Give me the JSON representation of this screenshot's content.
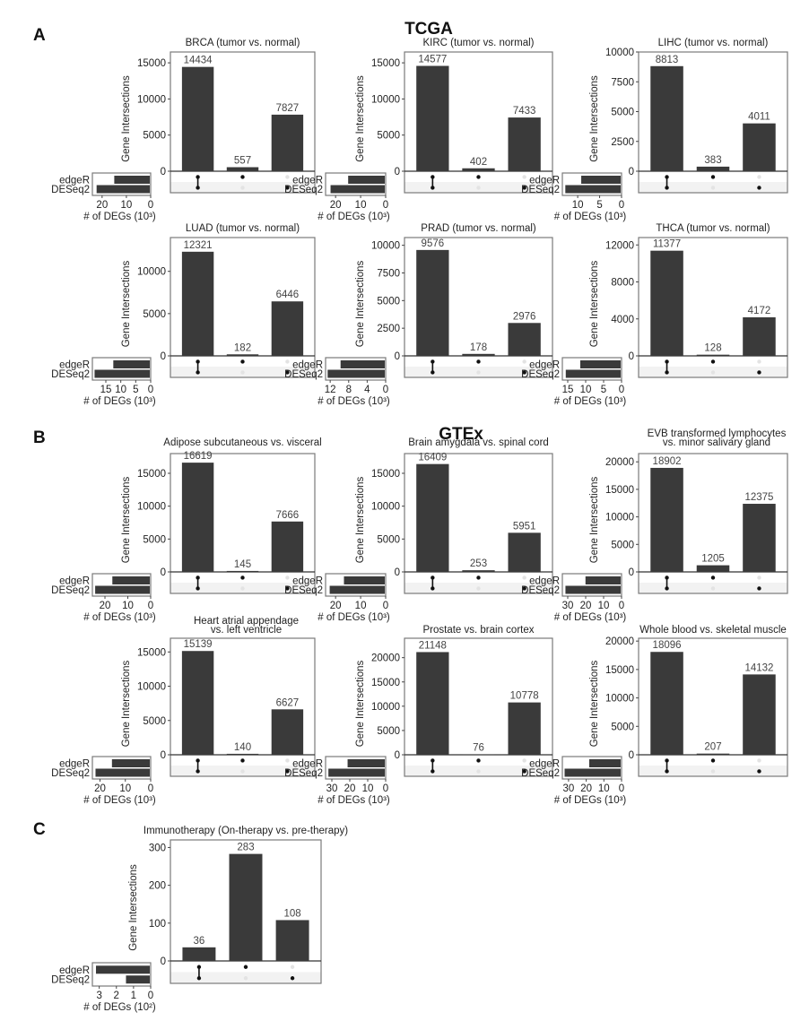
{
  "figure": {
    "sections": [
      {
        "letter": "A",
        "title": "TCGA"
      },
      {
        "letter": "B",
        "title": "GTEx"
      },
      {
        "letter": "C",
        "title": ""
      }
    ],
    "colors": {
      "bar": "#3a3a3a",
      "dot_active": "#111111",
      "dot_inactive": "#e3e3e3",
      "stripe": "#f2f2f2",
      "frame": "#7a7a7a"
    }
  },
  "chart_data": [
    {
      "type": "bar",
      "section": "A",
      "title": "BRCA (tumor vs. normal)",
      "ylabel": "Gene Intersections",
      "categories": [
        "edgeR & DESeq2",
        "edgeR only",
        "DESeq2 only"
      ],
      "values": [
        14434,
        557,
        7827
      ],
      "yticks": [
        0,
        5000,
        10000,
        15000
      ],
      "ylim": [
        0,
        16500
      ],
      "sets": [
        "edgeR",
        "DESeq2"
      ],
      "set_sizes": [
        14991,
        22261
      ],
      "set_xlabel": "# of DEGs (10³)",
      "set_ticks": [
        20,
        10,
        0
      ],
      "set_scale": 1000,
      "set_xlim": [
        24,
        0
      ]
    },
    {
      "type": "bar",
      "section": "A",
      "title": "KIRC (tumor vs. normal)",
      "ylabel": "Gene Intersections",
      "categories": [
        "edgeR & DESeq2",
        "edgeR only",
        "DESeq2 only"
      ],
      "values": [
        14577,
        402,
        7433
      ],
      "yticks": [
        0,
        5000,
        10000,
        15000
      ],
      "ylim": [
        0,
        16500
      ],
      "sets": [
        "edgeR",
        "DESeq2"
      ],
      "set_sizes": [
        14979,
        22010
      ],
      "set_xlabel": "# of DEGs (10³)",
      "set_ticks": [
        20,
        10,
        0
      ],
      "set_scale": 1000,
      "set_xlim": [
        24,
        0
      ]
    },
    {
      "type": "bar",
      "section": "A",
      "title": "LIHC (tumor vs. normal)",
      "ylabel": "Gene Intersections",
      "categories": [
        "edgeR & DESeq2",
        "edgeR only",
        "DESeq2 only"
      ],
      "values": [
        8813,
        383,
        4011
      ],
      "yticks": [
        0,
        2500,
        5000,
        7500,
        10000
      ],
      "ylim": [
        0,
        10000
      ],
      "sets": [
        "edgeR",
        "DESeq2"
      ],
      "set_sizes": [
        9196,
        12824
      ],
      "set_xlabel": "# of DEGs (10³)",
      "set_ticks": [
        10,
        5,
        0
      ],
      "set_scale": 1000,
      "set_xlim": [
        13.5,
        0
      ]
    },
    {
      "type": "bar",
      "section": "A",
      "title": "LUAD (tumor vs. normal)",
      "ylabel": "Gene Intersections",
      "categories": [
        "edgeR & DESeq2",
        "edgeR only",
        "DESeq2 only"
      ],
      "values": [
        12321,
        182,
        6446
      ],
      "yticks": [
        0,
        5000,
        10000
      ],
      "ylim": [
        0,
        14000
      ],
      "sets": [
        "edgeR",
        "DESeq2"
      ],
      "set_sizes": [
        12503,
        18767
      ],
      "set_xlabel": "# of DEGs (10³)",
      "set_ticks": [
        15,
        10,
        5,
        0
      ],
      "set_scale": 1000,
      "set_xlim": [
        19.5,
        0
      ]
    },
    {
      "type": "bar",
      "section": "A",
      "title": "PRAD (tumor vs. normal)",
      "ylabel": "Gene Intersections",
      "categories": [
        "edgeR & DESeq2",
        "edgeR only",
        "DESeq2 only"
      ],
      "values": [
        9576,
        178,
        2976
      ],
      "yticks": [
        0,
        2500,
        5000,
        7500,
        10000
      ],
      "ylim": [
        0,
        10700
      ],
      "sets": [
        "edgeR",
        "DESeq2"
      ],
      "set_sizes": [
        9754,
        12552
      ],
      "set_xlabel": "# of DEGs (10³)",
      "set_ticks": [
        12,
        8,
        4,
        0
      ],
      "set_scale": 1000,
      "set_xlim": [
        13,
        0
      ]
    },
    {
      "type": "bar",
      "section": "A",
      "title": "THCA (tumor vs. normal)",
      "ylabel": "Gene Intersections",
      "categories": [
        "edgeR & DESeq2",
        "edgeR only",
        "DESeq2 only"
      ],
      "values": [
        11377,
        128,
        4172
      ],
      "yticks": [
        0,
        4000,
        8000,
        12000
      ],
      "ylim": [
        0,
        12800
      ],
      "sets": [
        "edgeR",
        "DESeq2"
      ],
      "set_sizes": [
        11505,
        15549
      ],
      "set_xlabel": "# of DEGs (10³)",
      "set_ticks": [
        15,
        10,
        5,
        0
      ],
      "set_scale": 1000,
      "set_xlim": [
        16.5,
        0
      ]
    },
    {
      "type": "bar",
      "section": "B",
      "title": "Adipose subcutaneous vs. visceral",
      "ylabel": "Gene Intersections",
      "categories": [
        "edgeR & DESeq2",
        "edgeR only",
        "DESeq2 only"
      ],
      "values": [
        16619,
        145,
        7666
      ],
      "yticks": [
        0,
        5000,
        10000,
        15000
      ],
      "ylim": [
        0,
        18000
      ],
      "sets": [
        "edgeR",
        "DESeq2"
      ],
      "set_sizes": [
        16764,
        24285
      ],
      "set_xlabel": "# of DEGs (10³)",
      "set_ticks": [
        20,
        10,
        0
      ],
      "set_scale": 1000,
      "set_xlim": [
        25.5,
        0
      ]
    },
    {
      "type": "bar",
      "section": "B",
      "title": "Brain amygdala vs. spinal cord",
      "ylabel": "Gene Intersections",
      "categories": [
        "edgeR & DESeq2",
        "edgeR only",
        "DESeq2 only"
      ],
      "values": [
        16409,
        253,
        5951
      ],
      "yticks": [
        0,
        5000,
        10000,
        15000
      ],
      "ylim": [
        0,
        18000
      ],
      "sets": [
        "edgeR",
        "DESeq2"
      ],
      "set_sizes": [
        16662,
        22360
      ],
      "set_xlabel": "# of DEGs (10³)",
      "set_ticks": [
        20,
        10,
        0
      ],
      "set_scale": 1000,
      "set_xlim": [
        24,
        0
      ]
    },
    {
      "type": "bar",
      "section": "B",
      "title": "EVB transformed lymphocytes\nvs. minor salivary gland",
      "ylabel": "Gene Intersections",
      "categories": [
        "edgeR & DESeq2",
        "edgeR only",
        "DESeq2 only"
      ],
      "values": [
        18902,
        1205,
        12375
      ],
      "yticks": [
        0,
        5000,
        10000,
        15000,
        20000
      ],
      "ylim": [
        0,
        21500
      ],
      "sets": [
        "edgeR",
        "DESeq2"
      ],
      "set_sizes": [
        20107,
        31277
      ],
      "set_xlabel": "# of DEGs (10³)",
      "set_ticks": [
        30,
        20,
        10,
        0
      ],
      "set_scale": 1000,
      "set_xlim": [
        33,
        0
      ]
    },
    {
      "type": "bar",
      "section": "B",
      "title": "Heart atrial appendage\nvs. left ventricle",
      "ylabel": "Gene Intersections",
      "categories": [
        "edgeR & DESeq2",
        "edgeR only",
        "DESeq2 only"
      ],
      "values": [
        15139,
        140,
        6627
      ],
      "yticks": [
        0,
        5000,
        10000,
        15000
      ],
      "ylim": [
        0,
        17000
      ],
      "sets": [
        "edgeR",
        "DESeq2"
      ],
      "set_sizes": [
        15279,
        21766
      ],
      "set_xlabel": "# of DEGs (10³)",
      "set_ticks": [
        20,
        10,
        0
      ],
      "set_scale": 1000,
      "set_xlim": [
        23,
        0
      ]
    },
    {
      "type": "bar",
      "section": "B",
      "title": "Prostate vs. brain cortex",
      "ylabel": "Gene Intersections",
      "categories": [
        "edgeR & DESeq2",
        "edgeR only",
        "DESeq2 only"
      ],
      "values": [
        21148,
        76,
        10778
      ],
      "yticks": [
        0,
        5000,
        10000,
        15000,
        20000
      ],
      "ylim": [
        0,
        24000
      ],
      "sets": [
        "edgeR",
        "DESeq2"
      ],
      "set_sizes": [
        21224,
        31926
      ],
      "set_xlabel": "# of DEGs (10³)",
      "set_ticks": [
        30,
        20,
        10,
        0
      ],
      "set_scale": 1000,
      "set_xlim": [
        33.5,
        0
      ]
    },
    {
      "type": "bar",
      "section": "B",
      "title": "Whole blood vs. skeletal muscle",
      "ylabel": "Gene Intersections",
      "categories": [
        "edgeR & DESeq2",
        "edgeR only",
        "DESeq2 only"
      ],
      "values": [
        18096,
        207,
        14132
      ],
      "yticks": [
        0,
        5000,
        10000,
        15000,
        20000
      ],
      "ylim": [
        0,
        20500
      ],
      "sets": [
        "edgeR",
        "DESeq2"
      ],
      "set_sizes": [
        18303,
        32228
      ],
      "set_xlabel": "# of DEGs (10³)",
      "set_ticks": [
        30,
        20,
        10,
        0
      ],
      "set_scale": 1000,
      "set_xlim": [
        33.5,
        0
      ]
    },
    {
      "type": "bar",
      "section": "C",
      "title": "Immunotherapy (On-therapy vs. pre-therapy)",
      "ylabel": "Gene Intersections",
      "categories": [
        "edgeR & DESeq2",
        "edgeR only",
        "DESeq2 only"
      ],
      "values": [
        36,
        283,
        108
      ],
      "yticks": [
        0,
        100,
        200,
        300
      ],
      "ylim": [
        0,
        320
      ],
      "sets": [
        "edgeR",
        "DESeq2"
      ],
      "set_sizes": [
        319,
        144
      ],
      "set_xlabel": "# of DEGs (10²)",
      "set_ticks": [
        3,
        2,
        1,
        0
      ],
      "set_scale": 100,
      "set_xlim": [
        3.4,
        0
      ]
    }
  ],
  "matrix": {
    "rows": [
      "edgeR",
      "DESeq2"
    ],
    "columns": [
      {
        "edgeR": true,
        "DESeq2": true
      },
      {
        "edgeR": true,
        "DESeq2": false
      },
      {
        "edgeR": false,
        "DESeq2": true
      }
    ]
  }
}
